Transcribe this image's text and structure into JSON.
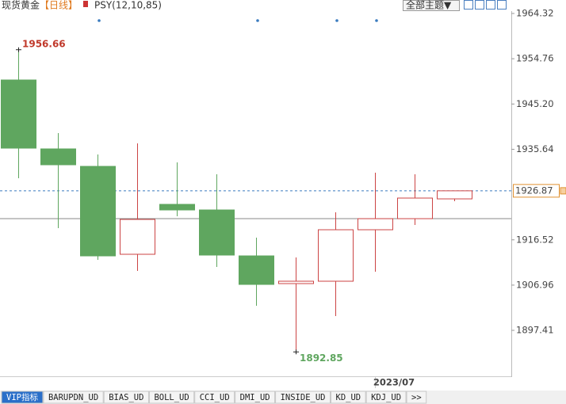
{
  "header": {
    "title": "现货黄金",
    "period": "【日线】",
    "indicator": "PSY(12,10,85)",
    "theme_button": "全部主题▼"
  },
  "chart_data": {
    "type": "candlestick",
    "categories": [
      null,
      null,
      null,
      null,
      null,
      null,
      null,
      null,
      null,
      "2023/07",
      null,
      null
    ],
    "open": [
      1950.27,
      1935.72,
      1932.03,
      1913.47,
      1924.01,
      1922.83,
      1913.13,
      1907.28,
      1907.78,
      1918.65,
      1920.99,
      1925.17
    ],
    "high": [
      1956.66,
      1939.06,
      1934.54,
      1936.89,
      1932.87,
      1930.36,
      1916.98,
      1912.8,
      1922.33,
      1930.7,
      1930.36,
      1926.87
    ],
    "low": [
      1929.53,
      1918.99,
      1912.3,
      1909.95,
      1921.5,
      1910.79,
      1902.59,
      1892.85,
      1900.42,
      1909.79,
      1919.66,
      1924.67
    ],
    "close": [
      1935.88,
      1932.37,
      1913.13,
      1920.83,
      1922.83,
      1913.3,
      1907.11,
      1907.78,
      1918.65,
      1920.99,
      1925.34,
      1926.87
    ],
    "up_color": "#cc4444",
    "down_color": "#5fa65f",
    "ylim": [
      1887.71,
      1967.16
    ],
    "yticks": [
      1964.32,
      1954.76,
      {
        "value": 1945.2,
        "label": "1945.20"
      },
      1935.64,
      1916.52,
      1906.96,
      1897.41
    ],
    "reference_line": 1920.99
  },
  "tabs": [
    "VIP指标",
    "BARUPDN_UD",
    "BIAS_UD",
    "BOLL_UD",
    "CCI_UD",
    "DMI_UD",
    "INSIDE_UD",
    "KD_UD",
    "KDJ_UD",
    ">>"
  ]
}
